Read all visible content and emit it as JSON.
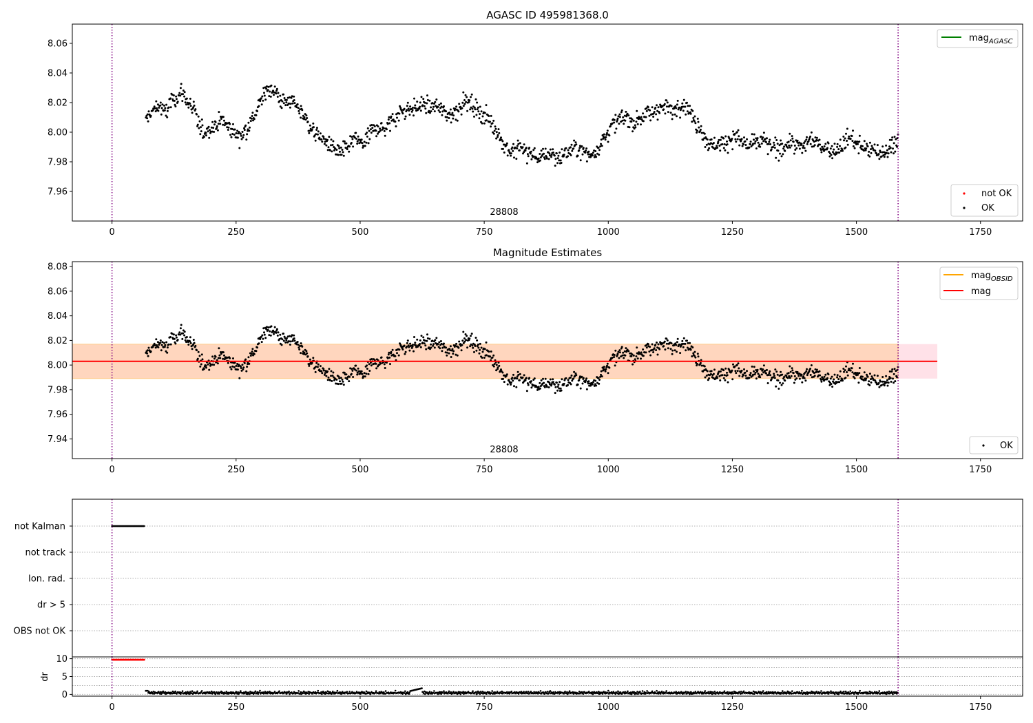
{
  "chart_data": [
    {
      "type": "scatter",
      "title": "AGASC ID 495981368.0",
      "xlim": [
        -80,
        1835
      ],
      "ylim": [
        7.94,
        8.073
      ],
      "x_ticks": [
        0,
        250,
        500,
        750,
        1000,
        1250,
        1500,
        1750
      ],
      "y_ticks": [
        7.96,
        7.98,
        8.0,
        8.02,
        8.04,
        8.06
      ],
      "vlines": [
        0,
        1584
      ],
      "annotation": "28808",
      "legend_lines": [
        {
          "label": "mag",
          "subscript": "AGASC",
          "color": "#008000"
        }
      ],
      "legend_markers": [
        {
          "label": "not OK",
          "color": "#ff0000"
        },
        {
          "label": "OK",
          "color": "#000000"
        }
      ],
      "series": [
        {
          "name": "OK",
          "color": "#000000",
          "x_range": [
            68,
            1584
          ],
          "values_ref": "mag_samples"
        }
      ]
    },
    {
      "type": "scatter",
      "title": "Magnitude Estimates",
      "xlim": [
        -80,
        1835
      ],
      "ylim": [
        7.924,
        8.084
      ],
      "x_ticks": [
        0,
        250,
        500,
        750,
        1000,
        1250,
        1500,
        1750
      ],
      "y_ticks": [
        7.94,
        7.96,
        7.98,
        8.0,
        8.02,
        8.04,
        8.06,
        8.08
      ],
      "vlines": [
        0,
        1584
      ],
      "annotation": "28808",
      "mag": 8.003,
      "mag_band": [
        7.989,
        8.017
      ],
      "band_xmax": 1663,
      "legend_lines": [
        {
          "label": "mag",
          "subscript": "OBSID",
          "color": "#ffa500"
        },
        {
          "label": "mag",
          "subscript": "",
          "color": "#ff0000"
        }
      ],
      "legend_markers": [
        {
          "label": "OK",
          "color": "#000000"
        }
      ],
      "series": [
        {
          "name": "OK",
          "color": "#000000",
          "x_range": [
            68,
            1584
          ],
          "values_ref": "mag_samples"
        }
      ]
    },
    {
      "type": "scatter",
      "flag_labels": [
        "not Kalman",
        "not track",
        "Ion. rad.",
        "dr > 5",
        "OBS not OK"
      ],
      "not_kalman_range": [
        0,
        65
      ],
      "vlines": [
        0,
        1584
      ]
    },
    {
      "type": "scatter",
      "xlim": [
        -80,
        1835
      ],
      "ylim": [
        -0.5,
        10.5
      ],
      "ylabel": "dr",
      "y_ticks": [
        0,
        5,
        10
      ],
      "x_ticks": [
        0,
        250,
        500,
        750,
        1000,
        1250,
        1500,
        1750
      ],
      "vlines": [
        0,
        1584
      ],
      "clipped_range": [
        0,
        65
      ],
      "clipped_value": 9.7,
      "dr_typical": 0.4
    }
  ],
  "mag_samples": {
    "x_start": 68,
    "x_end": 1584,
    "values": [
      8.008,
      8.013,
      8.016,
      8.018,
      8.012,
      8.02,
      8.022,
      8.026,
      8.025,
      8.018,
      8.014,
      8.005,
      8.0,
      8.002,
      8.004,
      8.007,
      8.008,
      8.004,
      8.001,
      7.998,
      7.999,
      8.003,
      8.008,
      8.015,
      8.022,
      8.028,
      8.03,
      8.026,
      8.022,
      8.02,
      8.022,
      8.018,
      8.015,
      8.01,
      8.004,
      8.0,
      7.997,
      7.994,
      7.992,
      7.989,
      7.986,
      7.987,
      7.991,
      7.995,
      7.994,
      7.992,
      7.997,
      8.001,
      8.004,
      8.002,
      8.004,
      8.008,
      8.011,
      8.014,
      8.016,
      8.015,
      8.017,
      8.018,
      8.019,
      8.016,
      8.018,
      8.016,
      8.013,
      8.012,
      8.013,
      8.017,
      8.021,
      8.02,
      8.017,
      8.015,
      8.012,
      8.009,
      8.005,
      8.0,
      7.992,
      7.989,
      7.986,
      7.988,
      7.99,
      7.986,
      7.985,
      7.984,
      7.982,
      7.985,
      7.987,
      7.983,
      7.982,
      7.986,
      7.987,
      7.99,
      7.988,
      7.986,
      7.984,
      7.987,
      7.991,
      7.996,
      8.002,
      8.005,
      8.008,
      8.01,
      8.01,
      8.006,
      8.008,
      8.011,
      8.013,
      8.012,
      8.016,
      8.017,
      8.018,
      8.013,
      8.017,
      8.02,
      8.018,
      8.012,
      8.006,
      8.004,
      7.996,
      7.991,
      7.992,
      7.993,
      7.992,
      7.995,
      7.997,
      7.995,
      7.993,
      7.991,
      7.992,
      7.993,
      7.995,
      7.991,
      7.99,
      7.988,
      7.99,
      7.992,
      7.994,
      7.99,
      7.989,
      7.993,
      7.996,
      7.993,
      7.99,
      7.991,
      7.987,
      7.988,
      7.99,
      7.994,
      7.997,
      7.993,
      7.991,
      7.99,
      7.988,
      7.986,
      7.987,
      7.985,
      7.989,
      7.992,
      7.996
    ]
  },
  "dr_samples": {
    "values": [
      0.5,
      0.3,
      0.6,
      0.2,
      0.4,
      0.7,
      0.3,
      0.5,
      0.2,
      0.6,
      0.4,
      0.3,
      0.8,
      0.2,
      0.5,
      0.4,
      0.6,
      0.3,
      0.2,
      0.5,
      0.7,
      0.4,
      0.3,
      0.6,
      0.2,
      0.4,
      0.5,
      0.9,
      0.3,
      0.4
    ]
  }
}
